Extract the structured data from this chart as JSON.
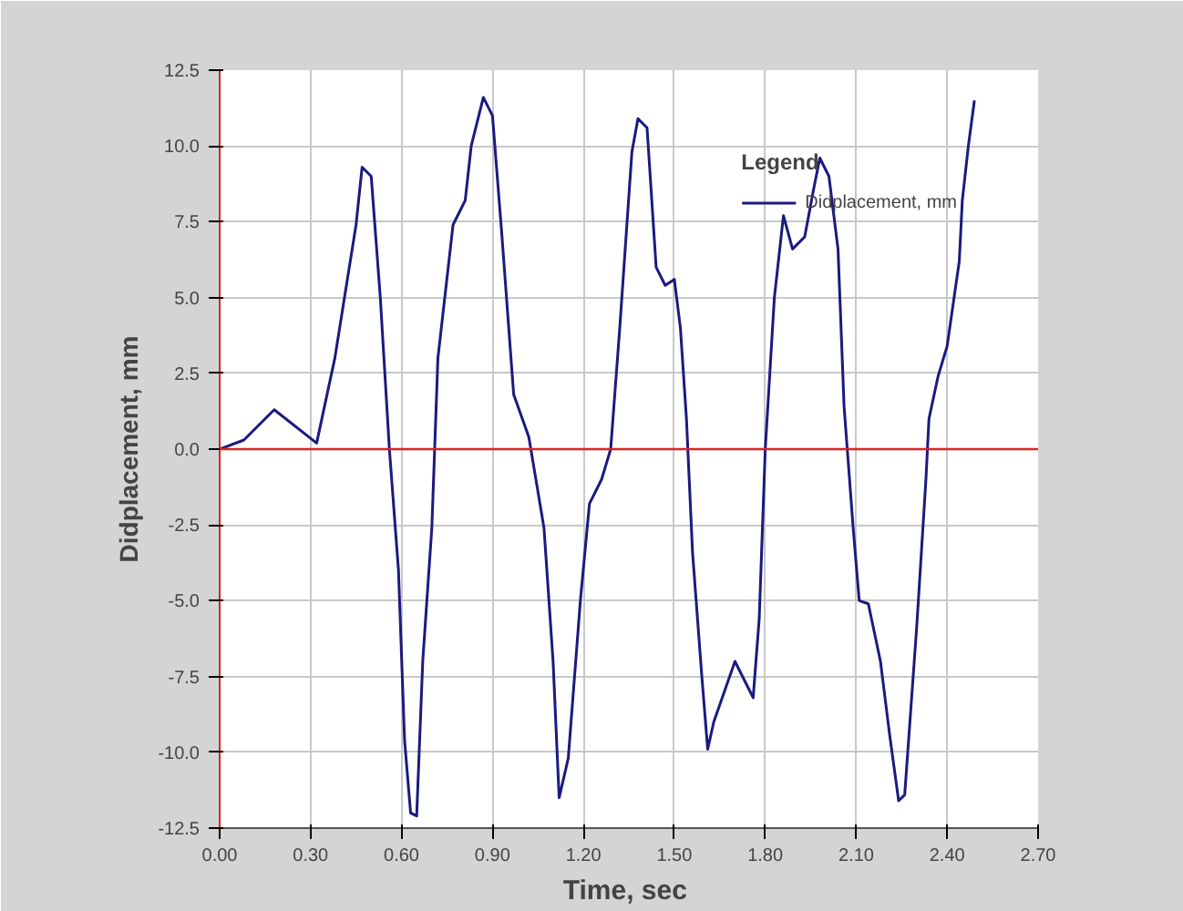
{
  "chart_data": {
    "type": "line",
    "xlabel": "Time,  sec",
    "ylabel": "Didplacement, mm",
    "legend_title": "Legend",
    "legend": "top right",
    "grid": true,
    "marker": "none",
    "line_style": "solid",
    "xlim": [
      0,
      2.7
    ],
    "ylim": [
      -12.5,
      12.5
    ],
    "xticks": [
      {
        "value": 0,
        "label": "0.00"
      },
      {
        "value": 0.3,
        "label": "0.30"
      },
      {
        "value": 0.6,
        "label": "0.60"
      },
      {
        "value": 0.9,
        "label": "0.90"
      },
      {
        "value": 1.2,
        "label": "1.20"
      },
      {
        "value": 1.5,
        "label": "1.50"
      },
      {
        "value": 1.8,
        "label": "1.80"
      },
      {
        "value": 2.1,
        "label": "2.10"
      },
      {
        "value": 2.4,
        "label": "2.40"
      },
      {
        "value": 2.7,
        "label": "2.70"
      }
    ],
    "yticks": [
      {
        "value": 12.5,
        "label": "12.5"
      },
      {
        "value": 10,
        "label": "10.0"
      },
      {
        "value": 7.5,
        "label": "7.5"
      },
      {
        "value": 5,
        "label": "5.0"
      },
      {
        "value": 2.5,
        "label": "2.5"
      },
      {
        "value": 0,
        "label": "0.0"
      },
      {
        "value": -2.5,
        "label": "-2.5"
      },
      {
        "value": -5,
        "label": "-5.0"
      },
      {
        "value": -7.5,
        "label": "-7.5"
      },
      {
        "value": -10,
        "label": "-10.0"
      },
      {
        "value": -12.5,
        "label": "-12.5"
      }
    ],
    "ref_lines": [
      {
        "axis": "y",
        "value": 0,
        "color": "#dd2222"
      }
    ],
    "x": [
      0,
      0.08,
      0.18,
      0.32,
      0.38,
      0.45,
      0.47,
      0.5,
      0.53,
      0.56,
      0.59,
      0.61,
      0.63,
      0.65,
      0.67,
      0.7,
      0.72,
      0.77,
      0.81,
      0.83,
      0.87,
      0.9,
      0.93,
      0.97,
      1.02,
      1.07,
      1.1,
      1.12,
      1.15,
      1.19,
      1.22,
      1.26,
      1.29,
      1.32,
      1.36,
      1.38,
      1.41,
      1.44,
      1.47,
      1.5,
      1.52,
      1.54,
      1.56,
      1.59,
      1.61,
      1.63,
      1.7,
      1.76,
      1.78,
      1.8,
      1.83,
      1.86,
      1.89,
      1.93,
      1.96,
      1.98,
      2.01,
      2.04,
      2.06,
      2.09,
      2.11,
      2.14,
      2.18,
      2.21,
      2.24,
      2.26,
      2.3,
      2.33,
      2.34,
      2.37,
      2.4,
      2.44,
      2.45,
      2.47,
      2.49
    ],
    "series": [
      {
        "name": "Didplacement, mm",
        "color": "#1a1a80",
        "values": [
          0,
          0.3,
          1.3,
          0.2,
          3.0,
          7.4,
          9.3,
          9.0,
          5.0,
          0.0,
          -4.0,
          -9.6,
          -12.0,
          -12.1,
          -7.0,
          -2.6,
          3.0,
          7.4,
          8.2,
          10.0,
          11.6,
          11.0,
          7.2,
          1.8,
          0.4,
          -2.6,
          -7.0,
          -11.5,
          -10.2,
          -5.0,
          -1.8,
          -1.0,
          0.0,
          4.0,
          9.8,
          10.9,
          10.6,
          6.0,
          5.4,
          5.6,
          4.0,
          1.0,
          -3.4,
          -7.4,
          -9.9,
          -9.0,
          -7.0,
          -8.2,
          -5.6,
          0.0,
          5.0,
          7.7,
          6.6,
          7.0,
          8.6,
          9.6,
          9.0,
          6.6,
          1.4,
          -2.6,
          -5.0,
          -5.1,
          -7.0,
          -9.4,
          -11.6,
          -11.4,
          -5.8,
          -1.0,
          1.0,
          2.4,
          3.4,
          6.2,
          8.2,
          10.0,
          11.5
        ]
      }
    ]
  }
}
